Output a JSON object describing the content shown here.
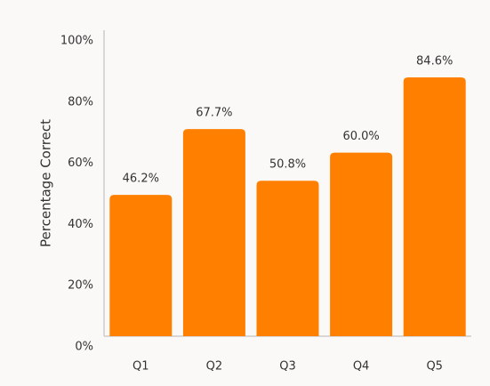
{
  "chart_data": {
    "type": "bar",
    "y_label": "Percentage Correct",
    "categories": [
      "Q1",
      "Q2",
      "Q3",
      "Q4",
      "Q5"
    ],
    "values": [
      46.2,
      67.7,
      50.8,
      60.0,
      84.6
    ],
    "value_labels": [
      "46.2%",
      "67.7%",
      "50.8%",
      "60.0%",
      "84.6%"
    ],
    "color": "#ff8000",
    "ylim": [
      0,
      100
    ],
    "yticks": [
      {
        "value": 0,
        "label": "0%"
      },
      {
        "value": 20,
        "label": "20%"
      },
      {
        "value": 40,
        "label": "40%"
      },
      {
        "value": 60,
        "label": "60%"
      },
      {
        "value": 80,
        "label": "80%"
      },
      {
        "value": 100,
        "label": "100%"
      }
    ],
    "grid": false
  }
}
